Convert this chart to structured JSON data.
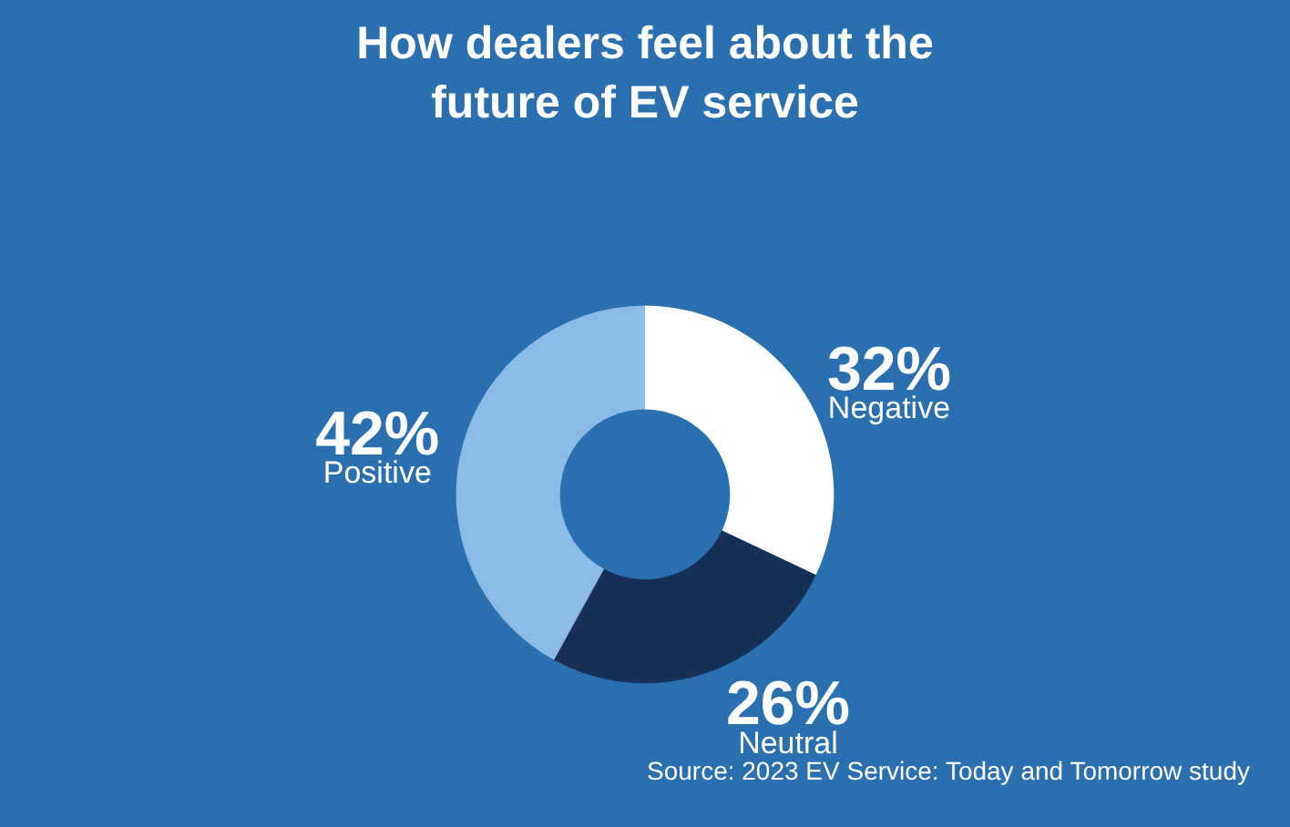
{
  "chart_data": {
    "type": "donut",
    "title": "How dealers feel about the\nfuture of EV service",
    "categories": [
      "Negative",
      "Neutral",
      "Positive"
    ],
    "values": [
      32,
      26,
      42
    ],
    "value_labels": [
      "32%",
      "26%",
      "42%"
    ],
    "colors": [
      "#ffffff",
      "#172f55",
      "#8bbbe6"
    ],
    "annotations": [
      "Source: 2023 EV Service: Today and Tomorrow study"
    ],
    "legend": false
  }
}
